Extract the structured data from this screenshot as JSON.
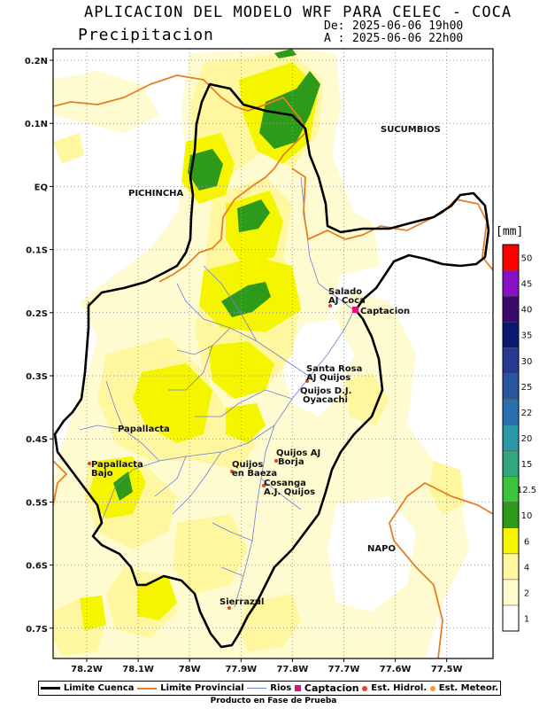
{
  "header": {
    "title": "APLICACION DEL MODELO WRF PARA CELEC - COCA",
    "subtitle": "Precipitacion",
    "from_label": "De:",
    "from_value": "2025-06-06 19h00",
    "to_label": "A :",
    "to_value": "2025-06-06 22h00"
  },
  "axes": {
    "lat_labels": [
      "0.2N",
      "0.1N",
      "EQ",
      "0.1S",
      "0.2S",
      "0.3S",
      "0.4S",
      "0.5S",
      "0.6S",
      "0.7S"
    ],
    "lon_labels": [
      "78.2W",
      "78.1W",
      "78W",
      "77.9W",
      "77.8W",
      "77.7W",
      "77.6W",
      "77.5W"
    ]
  },
  "regions": {
    "sucumbios": "SUCUMBIOS",
    "pichincha": "PICHINCHA",
    "napo": "NAPO"
  },
  "places": {
    "salado": "Salado",
    "aj_coca": "AJ Coca",
    "captacion": "Captacion",
    "santa_rosa": "Santa Rosa",
    "aj_quijos": "AJ Quijos",
    "quijos_dj": "Quijos D.J.",
    "oyacachi": "Oyacachi",
    "papallacta": "Papallacta",
    "quijos_aj": "Quijos AJ",
    "borja": "Borja",
    "papallacta_bajo_1": "Papallacta",
    "papallacta_bajo_2": "Bajo",
    "quijos_en": "Quijos",
    "en_baeza": "en Baeza",
    "cosanga": "Cosanga",
    "aj_quijos2": "A.J. Quijos",
    "sierrazul": "Sierrazul"
  },
  "colorbar": {
    "unit": "[mm]",
    "levels": [
      "1",
      "2",
      "4",
      "6",
      "10",
      "12.5",
      "15",
      "20",
      "22",
      "25",
      "30",
      "35",
      "40",
      "45",
      "50"
    ],
    "colors": [
      "#ffffff",
      "#fffbd0",
      "#fff7a0",
      "#f5f500",
      "#2e9a1a",
      "#3cc43c",
      "#33a67e",
      "#2a9aa8",
      "#2a70b0",
      "#2a55a0",
      "#253a90",
      "#0a1a70",
      "#3c0a6a",
      "#8a10c8",
      "#ff0000"
    ]
  },
  "legend": {
    "basin_limit": "Limite Cuenca",
    "provincial_limit": "Limite Provincial",
    "rivers": "Rios",
    "captacion": "Captacion",
    "hydro_station": "Est. Hidrol.",
    "meteo_station": "Est. Meteor."
  },
  "colors": {
    "basin": "#000000",
    "province": "#e57f27",
    "river": "#6e7fd6",
    "captacion": "#e0117f",
    "hydro": "#e2432a",
    "meteo": "#f29a2e",
    "grid": "#9a9a9a"
  },
  "footer": "Producto en Fase de Prueba"
}
